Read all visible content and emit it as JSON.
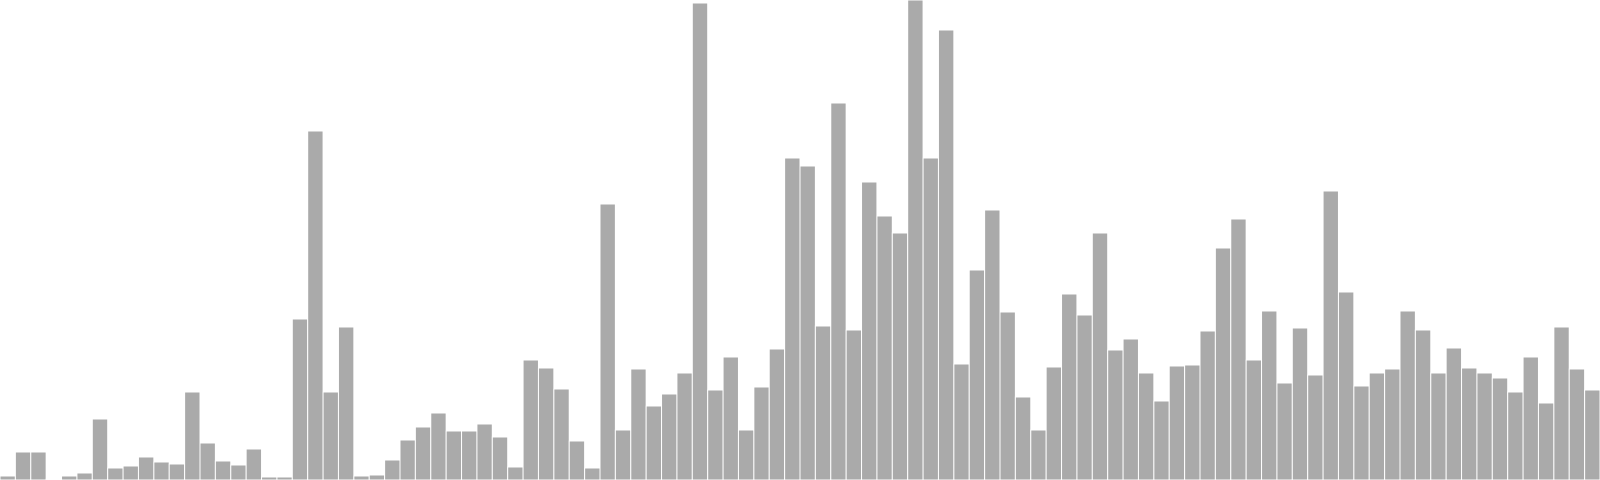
{
  "chart_data": {
    "type": "bar",
    "bar_color": "#aaaaaa",
    "bar_edge_color": "#ffffff",
    "axes_visible": false,
    "grid": false,
    "legend": "none",
    "ylim": [
      0,
      480
    ],
    "values": [
      4,
      28,
      28,
      1,
      4,
      7,
      61,
      12,
      14,
      23,
      18,
      16,
      88,
      37,
      19,
      15,
      31,
      3,
      3,
      161,
      349,
      88,
      153,
      4,
      5,
      20,
      40,
      53,
      67,
      49,
      49,
      56,
      43,
      13,
      120,
      112,
      91,
      39,
      12,
      276,
      50,
      111,
      74,
      86,
      107,
      477,
      90,
      123,
      50,
      93,
      131,
      322,
      314,
      154,
      377,
      150,
      298,
      264,
      247,
      480,
      322,
      450,
      116,
      210,
      270,
      168,
      83,
      50,
      113,
      186,
      165,
      247,
      130,
      141,
      107,
      79,
      114,
      115,
      149,
      232,
      261,
      120,
      169,
      97,
      152,
      105,
      289,
      188,
      94,
      107,
      111,
      169,
      150,
      107,
      132,
      112,
      107,
      102,
      88,
      123,
      77,
      153,
      111,
      90
    ]
  }
}
